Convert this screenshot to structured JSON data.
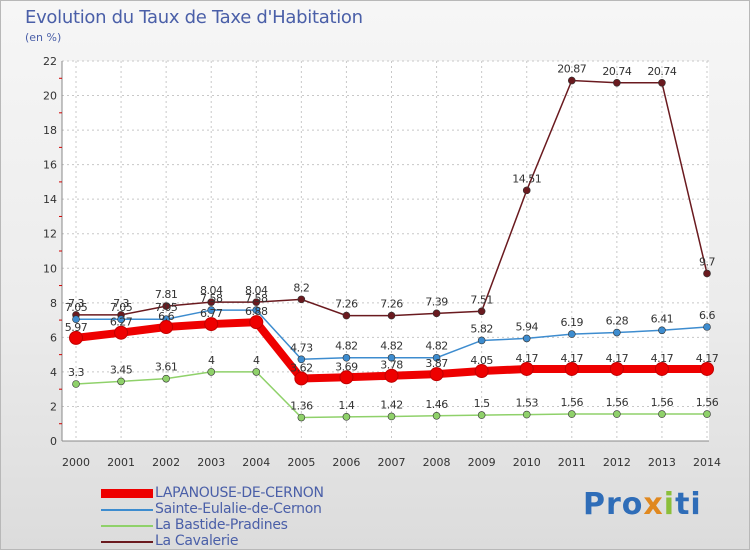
{
  "title": "Evolution du Taux de Taxe d'Habitation",
  "subtitle": "(en %)",
  "logo": {
    "parts": [
      "Pro",
      "x",
      "i",
      "ti"
    ]
  },
  "chart_data": {
    "type": "line",
    "title": "Evolution du Taux de Taxe d'Habitation",
    "ylabel": "(en %)",
    "xlabel": "",
    "categories": [
      "2000",
      "2001",
      "2002",
      "2003",
      "2004",
      "2005",
      "2006",
      "2007",
      "2008",
      "2009",
      "2010",
      "2011",
      "2012",
      "2013",
      "2014"
    ],
    "yticks": [
      "0",
      "2",
      "4",
      "6",
      "8",
      "10",
      "12",
      "14",
      "16",
      "18",
      "20",
      "22"
    ],
    "ylim": [
      0,
      22
    ],
    "legend_position": "bottom-left",
    "series": [
      {
        "name": "LAPANOUSE-DE-CERNON",
        "color": "#ee0000",
        "emphasis": true,
        "values": [
          5.97,
          6.27,
          6.6,
          6.77,
          6.88,
          3.62,
          3.69,
          3.78,
          3.87,
          4.05,
          4.17,
          4.17,
          4.17,
          4.17,
          4.17
        ],
        "labels": [
          "5.97",
          "6.27",
          "6.6",
          "6.77",
          "6.88",
          "3.62",
          "3.69",
          "3.78",
          "3.87",
          "4.05",
          "4.17",
          "4.17",
          "4.17",
          "4.17",
          "4.17"
        ]
      },
      {
        "name": "Sainte-Eulalie-de-Cernon",
        "color": "#3d8ccf",
        "values": [
          7.05,
          7.05,
          7.05,
          7.58,
          7.58,
          4.73,
          4.82,
          4.82,
          4.82,
          5.82,
          5.94,
          6.19,
          6.28,
          6.41,
          6.6
        ],
        "labels": [
          "7.05",
          "7.05",
          "7.05",
          "7.58",
          "7.58",
          "4.73",
          "4.82",
          "4.82",
          "4.82",
          "5.82",
          "5.94",
          "6.19",
          "6.28",
          "6.41",
          "6.6"
        ]
      },
      {
        "name": "La Bastide-Pradines",
        "color": "#8fd16a",
        "values": [
          3.3,
          3.45,
          3.61,
          4,
          4,
          1.36,
          1.4,
          1.42,
          1.46,
          1.5,
          1.53,
          1.56,
          1.56,
          1.56,
          1.56
        ],
        "labels": [
          "3.3",
          "3.45",
          "3.61",
          "4",
          "4",
          "1.36",
          "1.4",
          "1.42",
          "1.46",
          "1.5",
          "1.53",
          "1.56",
          "1.56",
          "1.56",
          "1.56"
        ]
      },
      {
        "name": "La Cavalerie",
        "color": "#6a1a1f",
        "values": [
          7.3,
          7.3,
          7.81,
          8.04,
          8.04,
          8.2,
          7.26,
          7.26,
          7.39,
          7.51,
          14.51,
          20.87,
          20.74,
          20.74,
          9.7
        ],
        "labels": [
          "7.3",
          "7.3",
          "7.81",
          "8.04",
          "8.04",
          "8.2",
          "7.26",
          "7.26",
          "7.39",
          "7.51",
          "14.51",
          "20.87",
          "20.74",
          "20.74",
          "9.7"
        ]
      }
    ]
  }
}
